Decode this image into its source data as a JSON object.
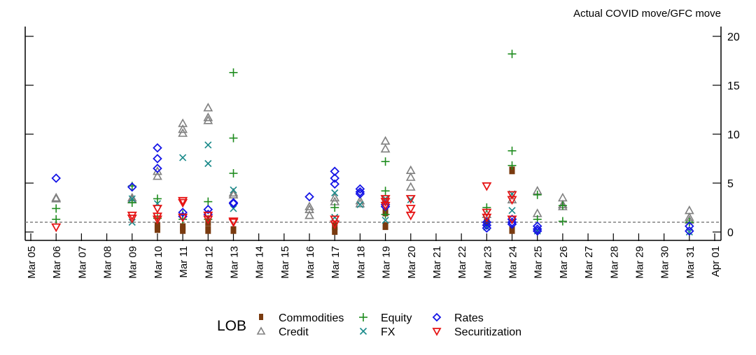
{
  "chart_data": {
    "type": "scatter",
    "title": "Actual COVID move/GFC move",
    "xlabel": "",
    "ylabel": "",
    "ylim": [
      -1,
      21
    ],
    "yticks": [
      0,
      5,
      10,
      15,
      20
    ],
    "y_axis_side": "right",
    "reference_line": {
      "y": 1,
      "style": "dashed",
      "color": "#808080"
    },
    "x_categories": [
      "Mar 05",
      "Mar 06",
      "Mar 07",
      "Mar 08",
      "Mar 09",
      "Mar 10",
      "Mar 11",
      "Mar 12",
      "Mar 13",
      "Mar 14",
      "Mar 15",
      "Mar 16",
      "Mar 17",
      "Mar 18",
      "Mar 19",
      "Mar 20",
      "Mar 21",
      "Mar 22",
      "Mar 23",
      "Mar 24",
      "Mar 25",
      "Mar 26",
      "Mar 27",
      "Mar 28",
      "Mar 29",
      "Mar 30",
      "Mar 31",
      "Apr 01"
    ],
    "legend": {
      "title": "LOB",
      "placement": "bottom-center",
      "entries": [
        "Commodities",
        "Credit",
        "Equity",
        "FX",
        "Rates",
        "Securitization"
      ]
    },
    "series": [
      {
        "name": "Commodities",
        "marker": "square",
        "color": "#7a3b10",
        "points": [
          [
            "Mar 10",
            0.3
          ],
          [
            "Mar 10",
            0.6
          ],
          [
            "Mar 11",
            0.2
          ],
          [
            "Mar 11",
            0.5
          ],
          [
            "Mar 12",
            0.2
          ],
          [
            "Mar 12",
            1.0
          ],
          [
            "Mar 13",
            0.2
          ],
          [
            "Mar 17",
            0.1
          ],
          [
            "Mar 17",
            0.6
          ],
          [
            "Mar 19",
            0.6
          ],
          [
            "Mar 19",
            2.0
          ],
          [
            "Mar 23",
            1.0
          ],
          [
            "Mar 24",
            0.2
          ],
          [
            "Mar 24",
            6.3
          ]
        ]
      },
      {
        "name": "Credit",
        "marker": "triangle-up",
        "color": "#808080",
        "points": [
          [
            "Mar 06",
            3.4
          ],
          [
            "Mar 06",
            3.5
          ],
          [
            "Mar 09",
            3.3
          ],
          [
            "Mar 09",
            3.5
          ],
          [
            "Mar 10",
            5.7
          ],
          [
            "Mar 10",
            6.2
          ],
          [
            "Mar 11",
            10.1
          ],
          [
            "Mar 11",
            10.5
          ],
          [
            "Mar 11",
            11.1
          ],
          [
            "Mar 12",
            11.4
          ],
          [
            "Mar 12",
            11.7
          ],
          [
            "Mar 12",
            12.7
          ],
          [
            "Mar 13",
            3.8
          ],
          [
            "Mar 13",
            4.0
          ],
          [
            "Mar 16",
            1.7
          ],
          [
            "Mar 16",
            2.3
          ],
          [
            "Mar 16",
            2.6
          ],
          [
            "Mar 17",
            3.1
          ],
          [
            "Mar 17",
            3.5
          ],
          [
            "Mar 18",
            2.9
          ],
          [
            "Mar 18",
            3.2
          ],
          [
            "Mar 19",
            8.5
          ],
          [
            "Mar 19",
            9.3
          ],
          [
            "Mar 20",
            4.6
          ],
          [
            "Mar 20",
            5.6
          ],
          [
            "Mar 20",
            6.3
          ],
          [
            "Mar 23",
            1.8
          ],
          [
            "Mar 24",
            3.3
          ],
          [
            "Mar 25",
            1.9
          ],
          [
            "Mar 25",
            4.2
          ],
          [
            "Mar 26",
            2.6
          ],
          [
            "Mar 26",
            2.8
          ],
          [
            "Mar 26",
            3.5
          ],
          [
            "Mar 31",
            1.2
          ],
          [
            "Mar 31",
            1.5
          ],
          [
            "Mar 31",
            2.2
          ]
        ]
      },
      {
        "name": "Equity",
        "marker": "plus",
        "color": "#1e8c1e",
        "points": [
          [
            "Mar 06",
            1.3
          ],
          [
            "Mar 06",
            2.4
          ],
          [
            "Mar 09",
            3.0
          ],
          [
            "Mar 09",
            4.7
          ],
          [
            "Mar 10",
            1.4
          ],
          [
            "Mar 10",
            3.4
          ],
          [
            "Mar 11",
            1.3
          ],
          [
            "Mar 11",
            1.8
          ],
          [
            "Mar 12",
            1.3
          ],
          [
            "Mar 12",
            3.1
          ],
          [
            "Mar 13",
            6.0
          ],
          [
            "Mar 13",
            9.6
          ],
          [
            "Mar 13",
            16.3
          ],
          [
            "Mar 17",
            2.5
          ],
          [
            "Mar 19",
            1.8
          ],
          [
            "Mar 19",
            4.2
          ],
          [
            "Mar 19",
            7.2
          ],
          [
            "Mar 23",
            2.5
          ],
          [
            "Mar 24",
            6.8
          ],
          [
            "Mar 24",
            8.3
          ],
          [
            "Mar 24",
            18.2
          ],
          [
            "Mar 25",
            1.3
          ],
          [
            "Mar 25",
            3.8
          ],
          [
            "Mar 26",
            1.1
          ],
          [
            "Mar 26",
            2.7
          ],
          [
            "Mar 31",
            1.0
          ]
        ]
      },
      {
        "name": "FX",
        "marker": "x",
        "color": "#1a8a8a",
        "points": [
          [
            "Mar 09",
            1.0
          ],
          [
            "Mar 09",
            3.4
          ],
          [
            "Mar 10",
            2.9
          ],
          [
            "Mar 11",
            7.6
          ],
          [
            "Mar 12",
            7.0
          ],
          [
            "Mar 12",
            8.9
          ],
          [
            "Mar 13",
            2.4
          ],
          [
            "Mar 13",
            4.3
          ],
          [
            "Mar 17",
            1.5
          ],
          [
            "Mar 17",
            4.0
          ],
          [
            "Mar 18",
            2.8
          ],
          [
            "Mar 19",
            1.2
          ],
          [
            "Mar 19",
            3.4
          ],
          [
            "Mar 20",
            3.3
          ],
          [
            "Mar 23",
            0.5
          ],
          [
            "Mar 24",
            2.2
          ],
          [
            "Mar 24",
            3.9
          ],
          [
            "Mar 25",
            0.1
          ],
          [
            "Mar 31",
            0.0
          ]
        ]
      },
      {
        "name": "Rates",
        "marker": "diamond",
        "color": "#1414e6",
        "points": [
          [
            "Mar 06",
            5.5
          ],
          [
            "Mar 09",
            4.6
          ],
          [
            "Mar 10",
            6.5
          ],
          [
            "Mar 10",
            7.5
          ],
          [
            "Mar 10",
            8.6
          ],
          [
            "Mar 11",
            1.6
          ],
          [
            "Mar 11",
            2.0
          ],
          [
            "Mar 12",
            1.8
          ],
          [
            "Mar 12",
            2.3
          ],
          [
            "Mar 13",
            2.9
          ],
          [
            "Mar 13",
            3.0
          ],
          [
            "Mar 16",
            3.6
          ],
          [
            "Mar 17",
            4.9
          ],
          [
            "Mar 17",
            5.5
          ],
          [
            "Mar 17",
            6.2
          ],
          [
            "Mar 18",
            3.9
          ],
          [
            "Mar 18",
            4.1
          ],
          [
            "Mar 18",
            4.4
          ],
          [
            "Mar 19",
            2.6
          ],
          [
            "Mar 19",
            2.8
          ],
          [
            "Mar 23",
            0.4
          ],
          [
            "Mar 23",
            0.7
          ],
          [
            "Mar 23",
            1.0
          ],
          [
            "Mar 24",
            0.8
          ],
          [
            "Mar 24",
            1.0
          ],
          [
            "Mar 24",
            1.3
          ],
          [
            "Mar 25",
            0.1
          ],
          [
            "Mar 25",
            0.3
          ],
          [
            "Mar 25",
            0.6
          ],
          [
            "Mar 31",
            0.1
          ],
          [
            "Mar 31",
            0.6
          ]
        ]
      },
      {
        "name": "Securitization",
        "marker": "triangle-down",
        "color": "#e61414",
        "points": [
          [
            "Mar 06",
            0.5
          ],
          [
            "Mar 09",
            1.4
          ],
          [
            "Mar 09",
            1.7
          ],
          [
            "Mar 10",
            1.3
          ],
          [
            "Mar 10",
            1.6
          ],
          [
            "Mar 10",
            2.4
          ],
          [
            "Mar 11",
            1.5
          ],
          [
            "Mar 11",
            3.0
          ],
          [
            "Mar 11",
            3.2
          ],
          [
            "Mar 12",
            1.3
          ],
          [
            "Mar 12",
            1.7
          ],
          [
            "Mar 13",
            1.0
          ],
          [
            "Mar 13",
            1.1
          ],
          [
            "Mar 17",
            0.8
          ],
          [
            "Mar 17",
            1.3
          ],
          [
            "Mar 19",
            2.7
          ],
          [
            "Mar 19",
            3.1
          ],
          [
            "Mar 19",
            3.4
          ],
          [
            "Mar 20",
            1.7
          ],
          [
            "Mar 20",
            2.4
          ],
          [
            "Mar 20",
            3.4
          ],
          [
            "Mar 23",
            1.5
          ],
          [
            "Mar 23",
            2.0
          ],
          [
            "Mar 23",
            4.7
          ],
          [
            "Mar 24",
            1.3
          ],
          [
            "Mar 24",
            3.3
          ],
          [
            "Mar 24",
            3.8
          ]
        ]
      }
    ]
  }
}
